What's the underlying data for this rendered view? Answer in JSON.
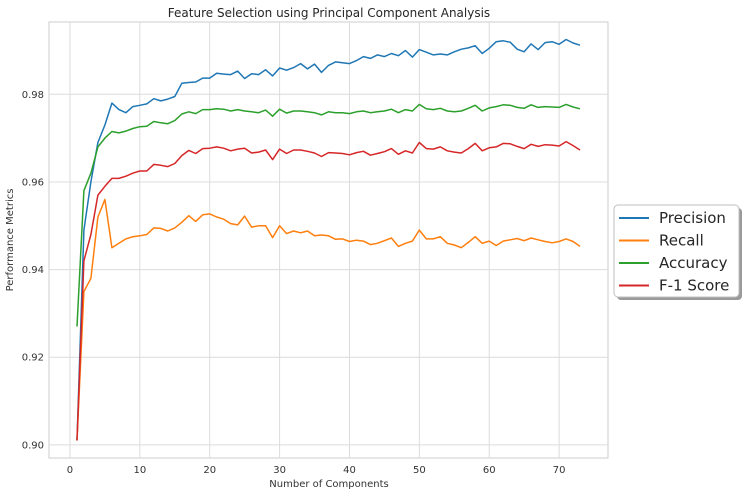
{
  "chart_data": {
    "type": "line",
    "title": "Feature Selection using Principal Component Analysis",
    "xlabel": "Number of Components",
    "ylabel": "Performance Metrics",
    "xlim": [
      -3,
      77
    ],
    "ylim": [
      0.897,
      0.9965
    ],
    "xticks": [
      0,
      10,
      20,
      30,
      40,
      50,
      60,
      70
    ],
    "yticks": [
      0.9,
      0.92,
      0.94,
      0.96,
      0.98
    ],
    "ytick_labels": [
      "0.90",
      "0.92",
      "0.94",
      "0.96",
      "0.98"
    ],
    "grid": true,
    "legend_position": "right",
    "x": [
      1,
      2,
      3,
      4,
      5,
      6,
      7,
      8,
      9,
      10,
      11,
      12,
      13,
      14,
      15,
      16,
      17,
      18,
      19,
      20,
      21,
      22,
      23,
      24,
      25,
      26,
      27,
      28,
      29,
      30,
      31,
      32,
      33,
      34,
      35,
      36,
      37,
      38,
      39,
      40,
      41,
      42,
      43,
      44,
      45,
      46,
      47,
      48,
      49,
      50,
      51,
      52,
      53,
      54,
      55,
      56,
      57,
      58,
      59,
      60,
      61,
      62,
      63,
      64,
      65,
      66,
      67,
      68,
      69,
      70,
      71,
      72,
      73
    ],
    "series": [
      {
        "name": "Precision",
        "color": "#1f77b4",
        "values": [
          0.901,
          0.949,
          0.96,
          0.969,
          0.973,
          0.978,
          0.9765,
          0.9758,
          0.9772,
          0.9775,
          0.9778,
          0.979,
          0.9785,
          0.9789,
          0.9795,
          0.9825,
          0.9827,
          0.9828,
          0.9837,
          0.9837,
          0.9848,
          0.9846,
          0.9845,
          0.9853,
          0.9836,
          0.9847,
          0.9845,
          0.9856,
          0.9842,
          0.986,
          0.9855,
          0.9861,
          0.987,
          0.9858,
          0.9869,
          0.985,
          0.9866,
          0.9874,
          0.9872,
          0.987,
          0.9877,
          0.9886,
          0.9882,
          0.989,
          0.9886,
          0.9893,
          0.9888,
          0.99,
          0.9885,
          0.9902,
          0.9896,
          0.989,
          0.9892,
          0.989,
          0.9897,
          0.9903,
          0.9906,
          0.9911,
          0.9893,
          0.9905,
          0.992,
          0.9922,
          0.9919,
          0.9903,
          0.9897,
          0.9915,
          0.9902,
          0.9918,
          0.992,
          0.9914,
          0.9925,
          0.9917,
          0.9912
        ]
      },
      {
        "name": "Recall",
        "color": "#ff7f0e",
        "values": [
          0.901,
          0.935,
          0.938,
          0.952,
          0.956,
          0.945,
          0.946,
          0.947,
          0.9475,
          0.9477,
          0.948,
          0.9495,
          0.9494,
          0.9488,
          0.9495,
          0.9508,
          0.9523,
          0.951,
          0.9525,
          0.9527,
          0.952,
          0.9515,
          0.9505,
          0.9502,
          0.9522,
          0.9497,
          0.95,
          0.95,
          0.9473,
          0.95,
          0.9482,
          0.9488,
          0.9484,
          0.9488,
          0.9477,
          0.9479,
          0.9477,
          0.9469,
          0.947,
          0.9464,
          0.9467,
          0.9465,
          0.9457,
          0.946,
          0.9466,
          0.9472,
          0.9453,
          0.946,
          0.9465,
          0.949,
          0.947,
          0.947,
          0.9475,
          0.946,
          0.9456,
          0.945,
          0.9462,
          0.9475,
          0.946,
          0.9465,
          0.9455,
          0.9465,
          0.9468,
          0.9471,
          0.9466,
          0.9472,
          0.9468,
          0.9464,
          0.9461,
          0.9464,
          0.947,
          0.9464,
          0.9453
        ]
      },
      {
        "name": "Accuracy",
        "color": "#2ca02c",
        "values": [
          0.927,
          0.958,
          0.962,
          0.968,
          0.97,
          0.9715,
          0.9712,
          0.9716,
          0.9722,
          0.9726,
          0.9727,
          0.9738,
          0.9735,
          0.9733,
          0.974,
          0.9755,
          0.976,
          0.9756,
          0.9765,
          0.9765,
          0.9767,
          0.9766,
          0.9762,
          0.9765,
          0.9762,
          0.976,
          0.9758,
          0.9764,
          0.975,
          0.9766,
          0.9757,
          0.9762,
          0.9762,
          0.976,
          0.9758,
          0.9753,
          0.976,
          0.9758,
          0.9758,
          0.9756,
          0.976,
          0.9762,
          0.9758,
          0.976,
          0.9762,
          0.9766,
          0.9758,
          0.9765,
          0.9762,
          0.9777,
          0.9767,
          0.9765,
          0.9768,
          0.9762,
          0.976,
          0.9762,
          0.9768,
          0.9775,
          0.9762,
          0.9769,
          0.9772,
          0.9776,
          0.9775,
          0.977,
          0.9768,
          0.9776,
          0.977,
          0.9772,
          0.9771,
          0.977,
          0.9777,
          0.9771,
          0.9767
        ]
      },
      {
        "name": "F-1 Score",
        "color": "#d62728",
        "values": [
          0.901,
          0.942,
          0.948,
          0.957,
          0.959,
          0.9608,
          0.9608,
          0.9613,
          0.962,
          0.9625,
          0.9625,
          0.964,
          0.9638,
          0.9635,
          0.9642,
          0.966,
          0.9672,
          0.9665,
          0.9676,
          0.9677,
          0.968,
          0.9677,
          0.9671,
          0.9675,
          0.9677,
          0.9666,
          0.9668,
          0.9673,
          0.9651,
          0.9675,
          0.9665,
          0.9673,
          0.9673,
          0.967,
          0.9666,
          0.9658,
          0.9667,
          0.9666,
          0.9665,
          0.9662,
          0.9667,
          0.967,
          0.9661,
          0.9665,
          0.9669,
          0.9676,
          0.9663,
          0.9671,
          0.9666,
          0.969,
          0.9676,
          0.9675,
          0.968,
          0.9671,
          0.9668,
          0.9666,
          0.9676,
          0.9688,
          0.9671,
          0.9678,
          0.968,
          0.9688,
          0.9687,
          0.9681,
          0.9676,
          0.9686,
          0.9681,
          0.9685,
          0.9684,
          0.9682,
          0.9692,
          0.9683,
          0.9673
        ]
      }
    ]
  }
}
